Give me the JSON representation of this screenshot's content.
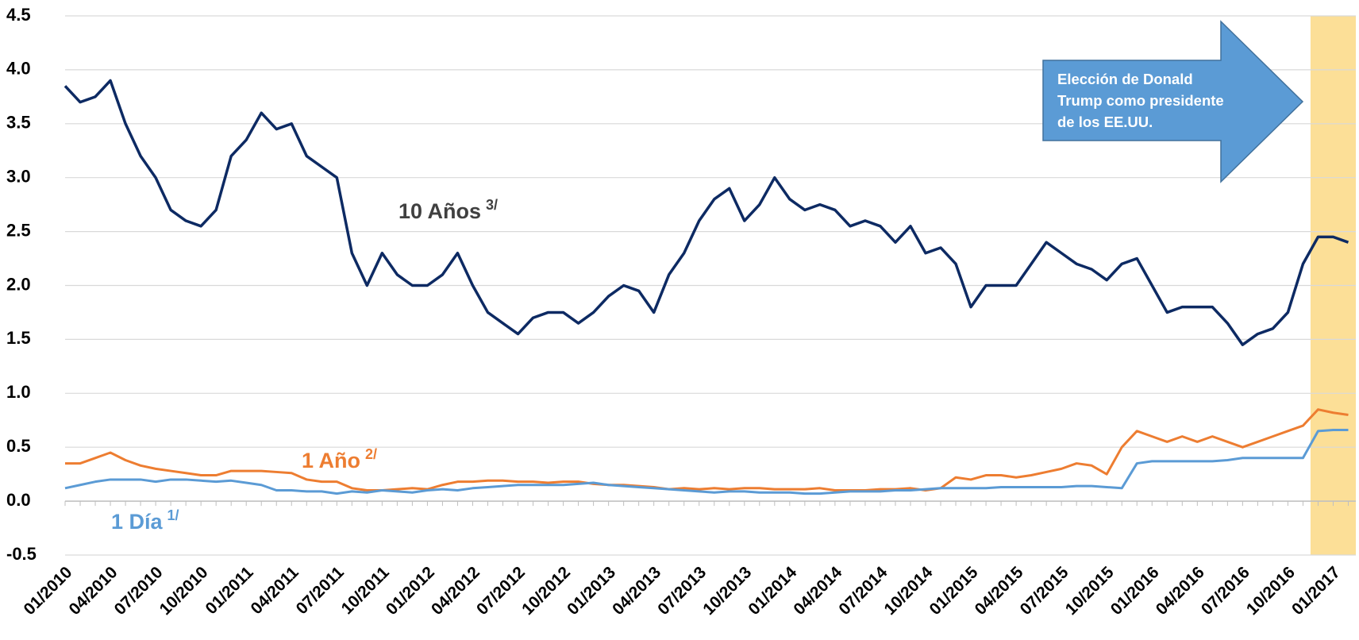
{
  "chart_data": {
    "type": "line",
    "categories": [
      "01/2010",
      null,
      null,
      "04/2010",
      null,
      null,
      "07/2010",
      null,
      null,
      "10/2010",
      null,
      null,
      "01/2011",
      null,
      null,
      "04/2011",
      null,
      null,
      "07/2011",
      null,
      null,
      "10/2011",
      null,
      null,
      "01/2012",
      null,
      null,
      "04/2012",
      null,
      null,
      "07/2012",
      null,
      null,
      "10/2012",
      null,
      null,
      "01/2013",
      null,
      null,
      "04/2013",
      null,
      null,
      "07/2013",
      null,
      null,
      "10/2013",
      null,
      null,
      "01/2014",
      null,
      null,
      "04/2014",
      null,
      null,
      "07/2014",
      null,
      null,
      "10/2014",
      null,
      null,
      "01/2015",
      null,
      null,
      "04/2015",
      null,
      null,
      "07/2015",
      null,
      null,
      "10/2015",
      null,
      null,
      "01/2016",
      null,
      null,
      "04/2016",
      null,
      null,
      "07/2016",
      null,
      null,
      "10/2016",
      null,
      null,
      "01/2017",
      null
    ],
    "series": [
      {
        "name": "10 Años",
        "note": "3/",
        "color": "#0d2a63",
        "label_color": "#404040",
        "values": [
          3.85,
          3.7,
          3.75,
          3.9,
          3.5,
          3.2,
          3.0,
          2.7,
          2.6,
          2.55,
          2.7,
          3.2,
          3.35,
          3.6,
          3.45,
          3.5,
          3.2,
          3.1,
          3.0,
          2.3,
          2.0,
          2.3,
          2.1,
          2.0,
          2.0,
          2.1,
          2.3,
          2.0,
          1.75,
          1.65,
          1.55,
          1.7,
          1.75,
          1.75,
          1.65,
          1.75,
          1.9,
          2.0,
          1.95,
          1.75,
          2.1,
          2.3,
          2.6,
          2.8,
          2.9,
          2.6,
          2.75,
          3.0,
          2.8,
          2.7,
          2.75,
          2.7,
          2.55,
          2.6,
          2.55,
          2.4,
          2.55,
          2.3,
          2.35,
          2.2,
          1.8,
          2.0,
          2.0,
          2.0,
          2.2,
          2.4,
          2.3,
          2.2,
          2.15,
          2.05,
          2.2,
          2.25,
          2.0,
          1.75,
          1.8,
          1.8,
          1.8,
          1.65,
          1.45,
          1.55,
          1.6,
          1.75,
          2.2,
          2.45,
          2.45,
          2.4
        ]
      },
      {
        "name": "1 Año",
        "note": "2/",
        "color": "#ed7d31",
        "label_color": "#ed7d31",
        "values": [
          0.35,
          0.35,
          0.4,
          0.45,
          0.38,
          0.33,
          0.3,
          0.28,
          0.26,
          0.24,
          0.24,
          0.28,
          0.28,
          0.28,
          0.27,
          0.26,
          0.2,
          0.18,
          0.18,
          0.12,
          0.1,
          0.1,
          0.11,
          0.12,
          0.11,
          0.15,
          0.18,
          0.18,
          0.19,
          0.19,
          0.18,
          0.18,
          0.17,
          0.18,
          0.18,
          0.16,
          0.15,
          0.15,
          0.14,
          0.13,
          0.11,
          0.12,
          0.11,
          0.12,
          0.11,
          0.12,
          0.12,
          0.11,
          0.11,
          0.11,
          0.12,
          0.1,
          0.1,
          0.1,
          0.11,
          0.11,
          0.12,
          0.1,
          0.12,
          0.22,
          0.2,
          0.24,
          0.24,
          0.22,
          0.24,
          0.27,
          0.3,
          0.35,
          0.33,
          0.25,
          0.5,
          0.65,
          0.6,
          0.55,
          0.6,
          0.55,
          0.6,
          0.55,
          0.5,
          0.55,
          0.6,
          0.65,
          0.7,
          0.85,
          0.82,
          0.8
        ]
      },
      {
        "name": "1 Día",
        "note": "1/",
        "color": "#5b9bd5",
        "label_color": "#5b9bd5",
        "values": [
          0.12,
          0.15,
          0.18,
          0.2,
          0.2,
          0.2,
          0.18,
          0.2,
          0.2,
          0.19,
          0.18,
          0.19,
          0.17,
          0.15,
          0.1,
          0.1,
          0.09,
          0.09,
          0.07,
          0.09,
          0.08,
          0.1,
          0.09,
          0.08,
          0.1,
          0.11,
          0.1,
          0.12,
          0.13,
          0.14,
          0.15,
          0.15,
          0.15,
          0.15,
          0.16,
          0.17,
          0.15,
          0.14,
          0.13,
          0.12,
          0.11,
          0.1,
          0.09,
          0.08,
          0.09,
          0.09,
          0.08,
          0.08,
          0.08,
          0.07,
          0.07,
          0.08,
          0.09,
          0.09,
          0.09,
          0.1,
          0.1,
          0.11,
          0.12,
          0.12,
          0.12,
          0.12,
          0.13,
          0.13,
          0.13,
          0.13,
          0.13,
          0.14,
          0.14,
          0.13,
          0.12,
          0.35,
          0.37,
          0.37,
          0.37,
          0.37,
          0.37,
          0.38,
          0.4,
          0.4,
          0.4,
          0.4,
          0.4,
          0.65,
          0.66,
          0.66
        ]
      }
    ],
    "annotation": [
      "Elección de Donald",
      "Trump como presidente",
      "de los EE.UU."
    ],
    "ylim": [
      -0.5,
      4.5
    ],
    "yticks": [
      -0.5,
      {
        "value": 0,
        "label": "0.0"
      },
      0.5,
      {
        "value": 1,
        "label": "1.0"
      },
      1.5,
      {
        "value": 2,
        "label": "2.0"
      },
      2.5,
      {
        "value": 3,
        "label": "3.0"
      },
      3.5,
      {
        "value": 4,
        "label": "4.0"
      },
      4.5
    ],
    "grid": true
  }
}
